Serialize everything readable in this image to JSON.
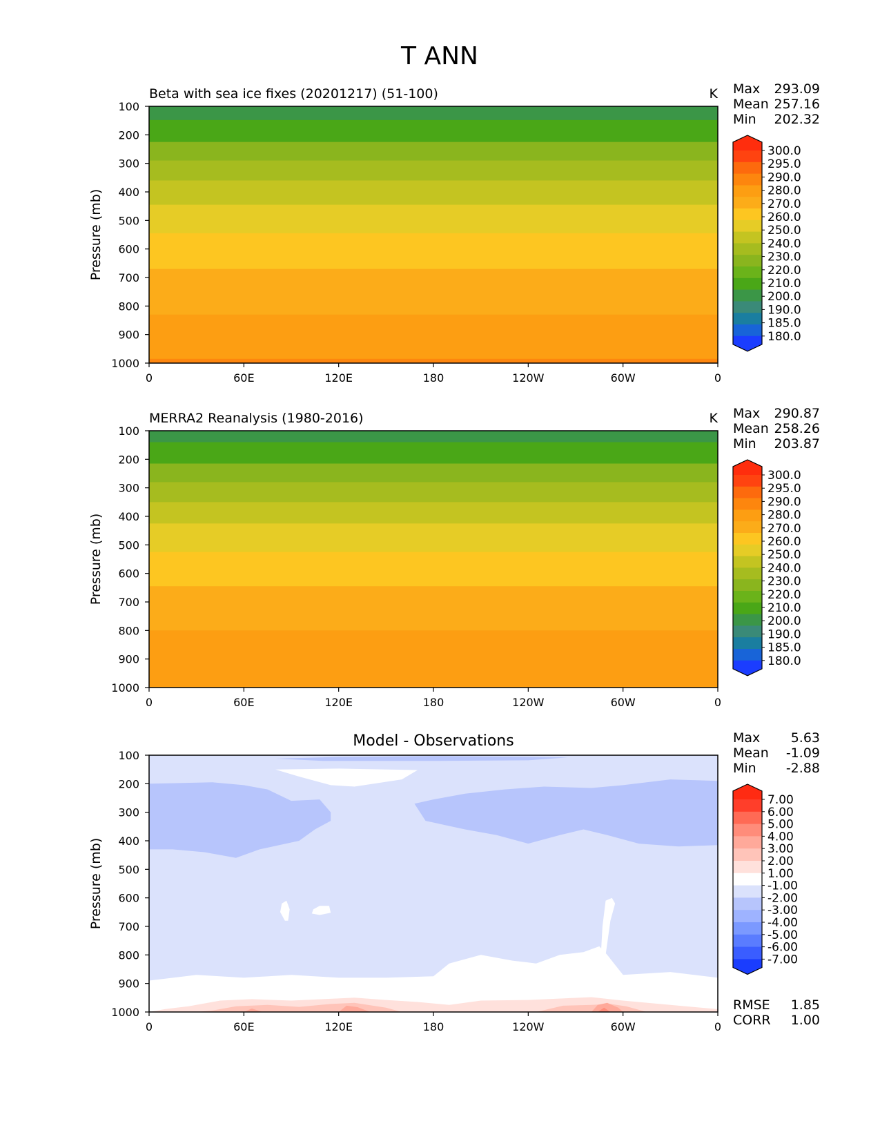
{
  "figure": {
    "title": "T ANN"
  },
  "colors": {
    "abs_levels": [
      "#1b3dff",
      "#1864d8",
      "#1a7ea0",
      "#3a8a78",
      "#3b9647",
      "#4aa717",
      "#6bb31a",
      "#8ab51e",
      "#a6bc1f",
      "#c4c421",
      "#e6cc26",
      "#fdc621",
      "#fcac19",
      "#fd9e12",
      "#fd860e",
      "#fd6a0d",
      "#ff4310",
      "#ff2d0d"
    ],
    "diff_levels": [
      "#1a3dfe",
      "#3a5dff",
      "#5a7cff",
      "#7b99ff",
      "#9eb3ff",
      "#b7c5fc",
      "#dbe2fc",
      "#ffffff",
      "#ffe1dc",
      "#ffc4b9",
      "#ffa99a",
      "#ff8c7a",
      "#ff6a55",
      "#ff3e2a",
      "#ff2b12"
    ]
  },
  "panels": [
    {
      "title_left": "Beta with sea ice fixes (20201217) (51-100)",
      "units": "K",
      "stats": [
        {
          "label": "Max",
          "value": "293.09"
        },
        {
          "label": "Mean",
          "value": "257.16"
        },
        {
          "label": "Min",
          "value": "202.32"
        }
      ],
      "colorbar_labels": [
        "300.0",
        "295.0",
        "290.0",
        "280.0",
        "270.0",
        "260.0",
        "250.0",
        "240.0",
        "230.0",
        "220.0",
        "210.0",
        "200.0",
        "190.0",
        "185.0",
        "180.0"
      ]
    },
    {
      "title_left": "MERRA2 Reanalysis (1980-2016)",
      "units": "K",
      "stats": [
        {
          "label": "Max",
          "value": "290.87"
        },
        {
          "label": "Mean",
          "value": "258.26"
        },
        {
          "label": "Min",
          "value": "203.87"
        }
      ],
      "colorbar_labels": [
        "300.0",
        "295.0",
        "290.0",
        "280.0",
        "270.0",
        "260.0",
        "250.0",
        "240.0",
        "230.0",
        "220.0",
        "210.0",
        "200.0",
        "190.0",
        "185.0",
        "180.0"
      ]
    },
    {
      "title_center": "Model - Observations",
      "stats": [
        {
          "label": "Max",
          "value": "5.63"
        },
        {
          "label": "Mean",
          "value": "-1.09"
        },
        {
          "label": "Min",
          "value": "-2.88"
        }
      ],
      "colorbar_labels": [
        "7.00",
        "6.00",
        "5.00",
        "4.00",
        "3.00",
        "2.00",
        "1.00",
        "-1.00",
        "-2.00",
        "-3.00",
        "-4.00",
        "-5.00",
        "-6.00",
        "-7.00"
      ],
      "extra_stats": [
        {
          "label": "RMSE",
          "value": "1.85"
        },
        {
          "label": "CORR",
          "value": "1.00"
        }
      ]
    }
  ],
  "chart_data": [
    {
      "type": "heatmap",
      "title": "Beta with sea ice fixes (20201217) (51-100)",
      "units": "K",
      "xlabel": "",
      "ylabel": "Pressure (mb)",
      "x_ticks": [
        "0",
        "60E",
        "120E",
        "180",
        "120W",
        "60W",
        "0"
      ],
      "x_tick_values": [
        0,
        60,
        120,
        180,
        240,
        300,
        360
      ],
      "y_ticks": [
        "100",
        "200",
        "300",
        "400",
        "500",
        "600",
        "700",
        "800",
        "900",
        "1000"
      ],
      "y_tick_values": [
        100,
        200,
        300,
        400,
        500,
        600,
        700,
        800,
        900,
        1000
      ],
      "xlim": [
        0,
        360
      ],
      "ylim": [
        1000,
        100
      ],
      "bands": [
        {
          "p_top": 100,
          "p_bottom": 148,
          "level": 4
        },
        {
          "p_top": 148,
          "p_bottom": 225,
          "level": 5
        },
        {
          "p_top": 225,
          "p_bottom": 290,
          "level": 7
        },
        {
          "p_top": 290,
          "p_bottom": 360,
          "level": 8
        },
        {
          "p_top": 360,
          "p_bottom": 445,
          "level": 9
        },
        {
          "p_top": 445,
          "p_bottom": 545,
          "level": 10
        },
        {
          "p_top": 545,
          "p_bottom": 670,
          "level": 11
        },
        {
          "p_top": 670,
          "p_bottom": 830,
          "level": 12
        },
        {
          "p_top": 830,
          "p_bottom": 985,
          "level": 13
        },
        {
          "p_top": 985,
          "p_bottom": 1000,
          "level": 14
        }
      ]
    },
    {
      "type": "heatmap",
      "title": "MERRA2 Reanalysis (1980-2016)",
      "units": "K",
      "xlabel": "",
      "ylabel": "Pressure (mb)",
      "x_ticks": [
        "0",
        "60E",
        "120E",
        "180",
        "120W",
        "60W",
        "0"
      ],
      "x_tick_values": [
        0,
        60,
        120,
        180,
        240,
        300,
        360
      ],
      "y_ticks": [
        "100",
        "200",
        "300",
        "400",
        "500",
        "600",
        "700",
        "800",
        "900",
        "1000"
      ],
      "y_tick_values": [
        100,
        200,
        300,
        400,
        500,
        600,
        700,
        800,
        900,
        1000
      ],
      "xlim": [
        0,
        360
      ],
      "ylim": [
        1000,
        100
      ],
      "bands": [
        {
          "p_top": 100,
          "p_bottom": 140,
          "level": 4
        },
        {
          "p_top": 140,
          "p_bottom": 215,
          "level": 5
        },
        {
          "p_top": 215,
          "p_bottom": 280,
          "level": 7
        },
        {
          "p_top": 280,
          "p_bottom": 350,
          "level": 8
        },
        {
          "p_top": 350,
          "p_bottom": 425,
          "level": 9
        },
        {
          "p_top": 425,
          "p_bottom": 525,
          "level": 10
        },
        {
          "p_top": 525,
          "p_bottom": 645,
          "level": 11
        },
        {
          "p_top": 645,
          "p_bottom": 800,
          "level": 12
        },
        {
          "p_top": 800,
          "p_bottom": 1000,
          "level": 13
        }
      ]
    },
    {
      "type": "heatmap",
      "title": "Model - Observations",
      "xlabel": "",
      "ylabel": "Pressure (mb)",
      "x_ticks": [
        "0",
        "60E",
        "120E",
        "180",
        "120W",
        "60W",
        "0"
      ],
      "x_tick_values": [
        0,
        60,
        120,
        180,
        240,
        300,
        360
      ],
      "y_ticks": [
        "100",
        "200",
        "300",
        "400",
        "500",
        "600",
        "700",
        "800",
        "900",
        "1000"
      ],
      "y_tick_values": [
        100,
        200,
        300,
        400,
        500,
        600,
        700,
        800,
        900,
        1000
      ],
      "xlim": [
        0,
        360
      ],
      "ylim": [
        1000,
        100
      ],
      "background_level": 6,
      "regions": [
        {
          "level": 5,
          "points": [
            [
              0,
              200
            ],
            [
              40,
              195
            ],
            [
              60,
              205
            ],
            [
              75,
              220
            ],
            [
              90,
              260
            ],
            [
              108,
              255
            ],
            [
              115,
              300
            ],
            [
              115,
              330
            ],
            [
              105,
              360
            ],
            [
              95,
              400
            ],
            [
              70,
              430
            ],
            [
              55,
              460
            ],
            [
              35,
              440
            ],
            [
              15,
              430
            ],
            [
              0,
              430
            ]
          ]
        },
        {
          "level": 5,
          "points": [
            [
              168,
              270
            ],
            [
              180,
              255
            ],
            [
              200,
              235
            ],
            [
              225,
              220
            ],
            [
              250,
              210
            ],
            [
              280,
              215
            ],
            [
              300,
              205
            ],
            [
              330,
              185
            ],
            [
              360,
              190
            ],
            [
              360,
              415
            ],
            [
              335,
              420
            ],
            [
              310,
              410
            ],
            [
              290,
              380
            ],
            [
              275,
              360
            ],
            [
              260,
              380
            ],
            [
              240,
              410
            ],
            [
              220,
              380
            ],
            [
              200,
              360
            ],
            [
              175,
              330
            ]
          ]
        },
        {
          "level": 5,
          "points": [
            [
              80,
              112
            ],
            [
              120,
              106
            ],
            [
              180,
              103
            ],
            [
              230,
              105
            ],
            [
              265,
              108
            ],
            [
              240,
              118
            ],
            [
              180,
              120
            ],
            [
              110,
              120
            ]
          ]
        },
        {
          "level": 7,
          "points": [
            [
              80,
              150
            ],
            [
              120,
              147
            ],
            [
              170,
              152
            ],
            [
              160,
              185
            ],
            [
              130,
              210
            ],
            [
              115,
              205
            ],
            [
              95,
              175
            ]
          ]
        },
        {
          "level": 7,
          "points": [
            [
              0,
              890
            ],
            [
              30,
              870
            ],
            [
              60,
              880
            ],
            [
              90,
              870
            ],
            [
              120,
              880
            ],
            [
              150,
              880
            ],
            [
              180,
              875
            ],
            [
              190,
              830
            ],
            [
              210,
              800
            ],
            [
              230,
              820
            ],
            [
              245,
              830
            ],
            [
              260,
              800
            ],
            [
              275,
              790
            ],
            [
              285,
              770
            ],
            [
              290,
              800
            ],
            [
              300,
              870
            ],
            [
              330,
              860
            ],
            [
              360,
              880
            ],
            [
              360,
              1000
            ],
            [
              0,
              1000
            ]
          ]
        },
        {
          "level": 7,
          "points": [
            [
              84,
              620
            ],
            [
              87,
              610
            ],
            [
              89,
              640
            ],
            [
              88,
              680
            ],
            [
              86,
              680
            ],
            [
              83,
              650
            ]
          ]
        },
        {
          "level": 7,
          "points": [
            [
              104,
              640
            ],
            [
              108,
              628
            ],
            [
              114,
              628
            ],
            [
              115,
              652
            ],
            [
              108,
              660
            ],
            [
              103,
              655
            ]
          ]
        },
        {
          "level": 7,
          "points": [
            [
              289,
              610
            ],
            [
              293,
              600
            ],
            [
              295,
              620
            ],
            [
              292,
              680
            ],
            [
              289,
              800
            ],
            [
              286,
              800
            ],
            [
              287,
              700
            ]
          ]
        },
        {
          "level": 8,
          "points": [
            [
              25,
              980
            ],
            [
              45,
              960
            ],
            [
              65,
              955
            ],
            [
              90,
              960
            ],
            [
              110,
              955
            ],
            [
              130,
              950
            ],
            [
              150,
              958
            ],
            [
              170,
              965
            ],
            [
              190,
              975
            ],
            [
              210,
              960
            ],
            [
              240,
              958
            ],
            [
              280,
              948
            ],
            [
              300,
              960
            ],
            [
              330,
              975
            ],
            [
              360,
              990
            ],
            [
              360,
              1000
            ],
            [
              0,
              1000
            ],
            [
              10,
              990
            ]
          ]
        },
        {
          "level": 9,
          "points": [
            [
              40,
              995
            ],
            [
              55,
              980
            ],
            [
              75,
              975
            ],
            [
              95,
              982
            ],
            [
              115,
              972
            ],
            [
              130,
              968
            ],
            [
              150,
              985
            ],
            [
              160,
              1000
            ],
            [
              30,
              1000
            ]
          ]
        },
        {
          "level": 9,
          "points": [
            [
              245,
              1000
            ],
            [
              262,
              978
            ],
            [
              280,
              975
            ],
            [
              292,
              972
            ],
            [
              302,
              980
            ],
            [
              315,
              1000
            ]
          ]
        },
        {
          "level": 10,
          "points": [
            [
              60,
              1000
            ],
            [
              65,
              988
            ],
            [
              72,
              1000
            ]
          ]
        },
        {
          "level": 10,
          "points": [
            [
              120,
              1000
            ],
            [
              125,
              978
            ],
            [
              132,
              983
            ],
            [
              140,
              1000
            ]
          ]
        },
        {
          "level": 10,
          "points": [
            [
              280,
              1000
            ],
            [
              284,
              975
            ],
            [
              290,
              968
            ],
            [
              297,
              985
            ],
            [
              300,
              1000
            ]
          ]
        },
        {
          "level": 11,
          "points": [
            [
              284,
              1000
            ],
            [
              288,
              985
            ],
            [
              292,
              1000
            ]
          ]
        }
      ]
    }
  ]
}
